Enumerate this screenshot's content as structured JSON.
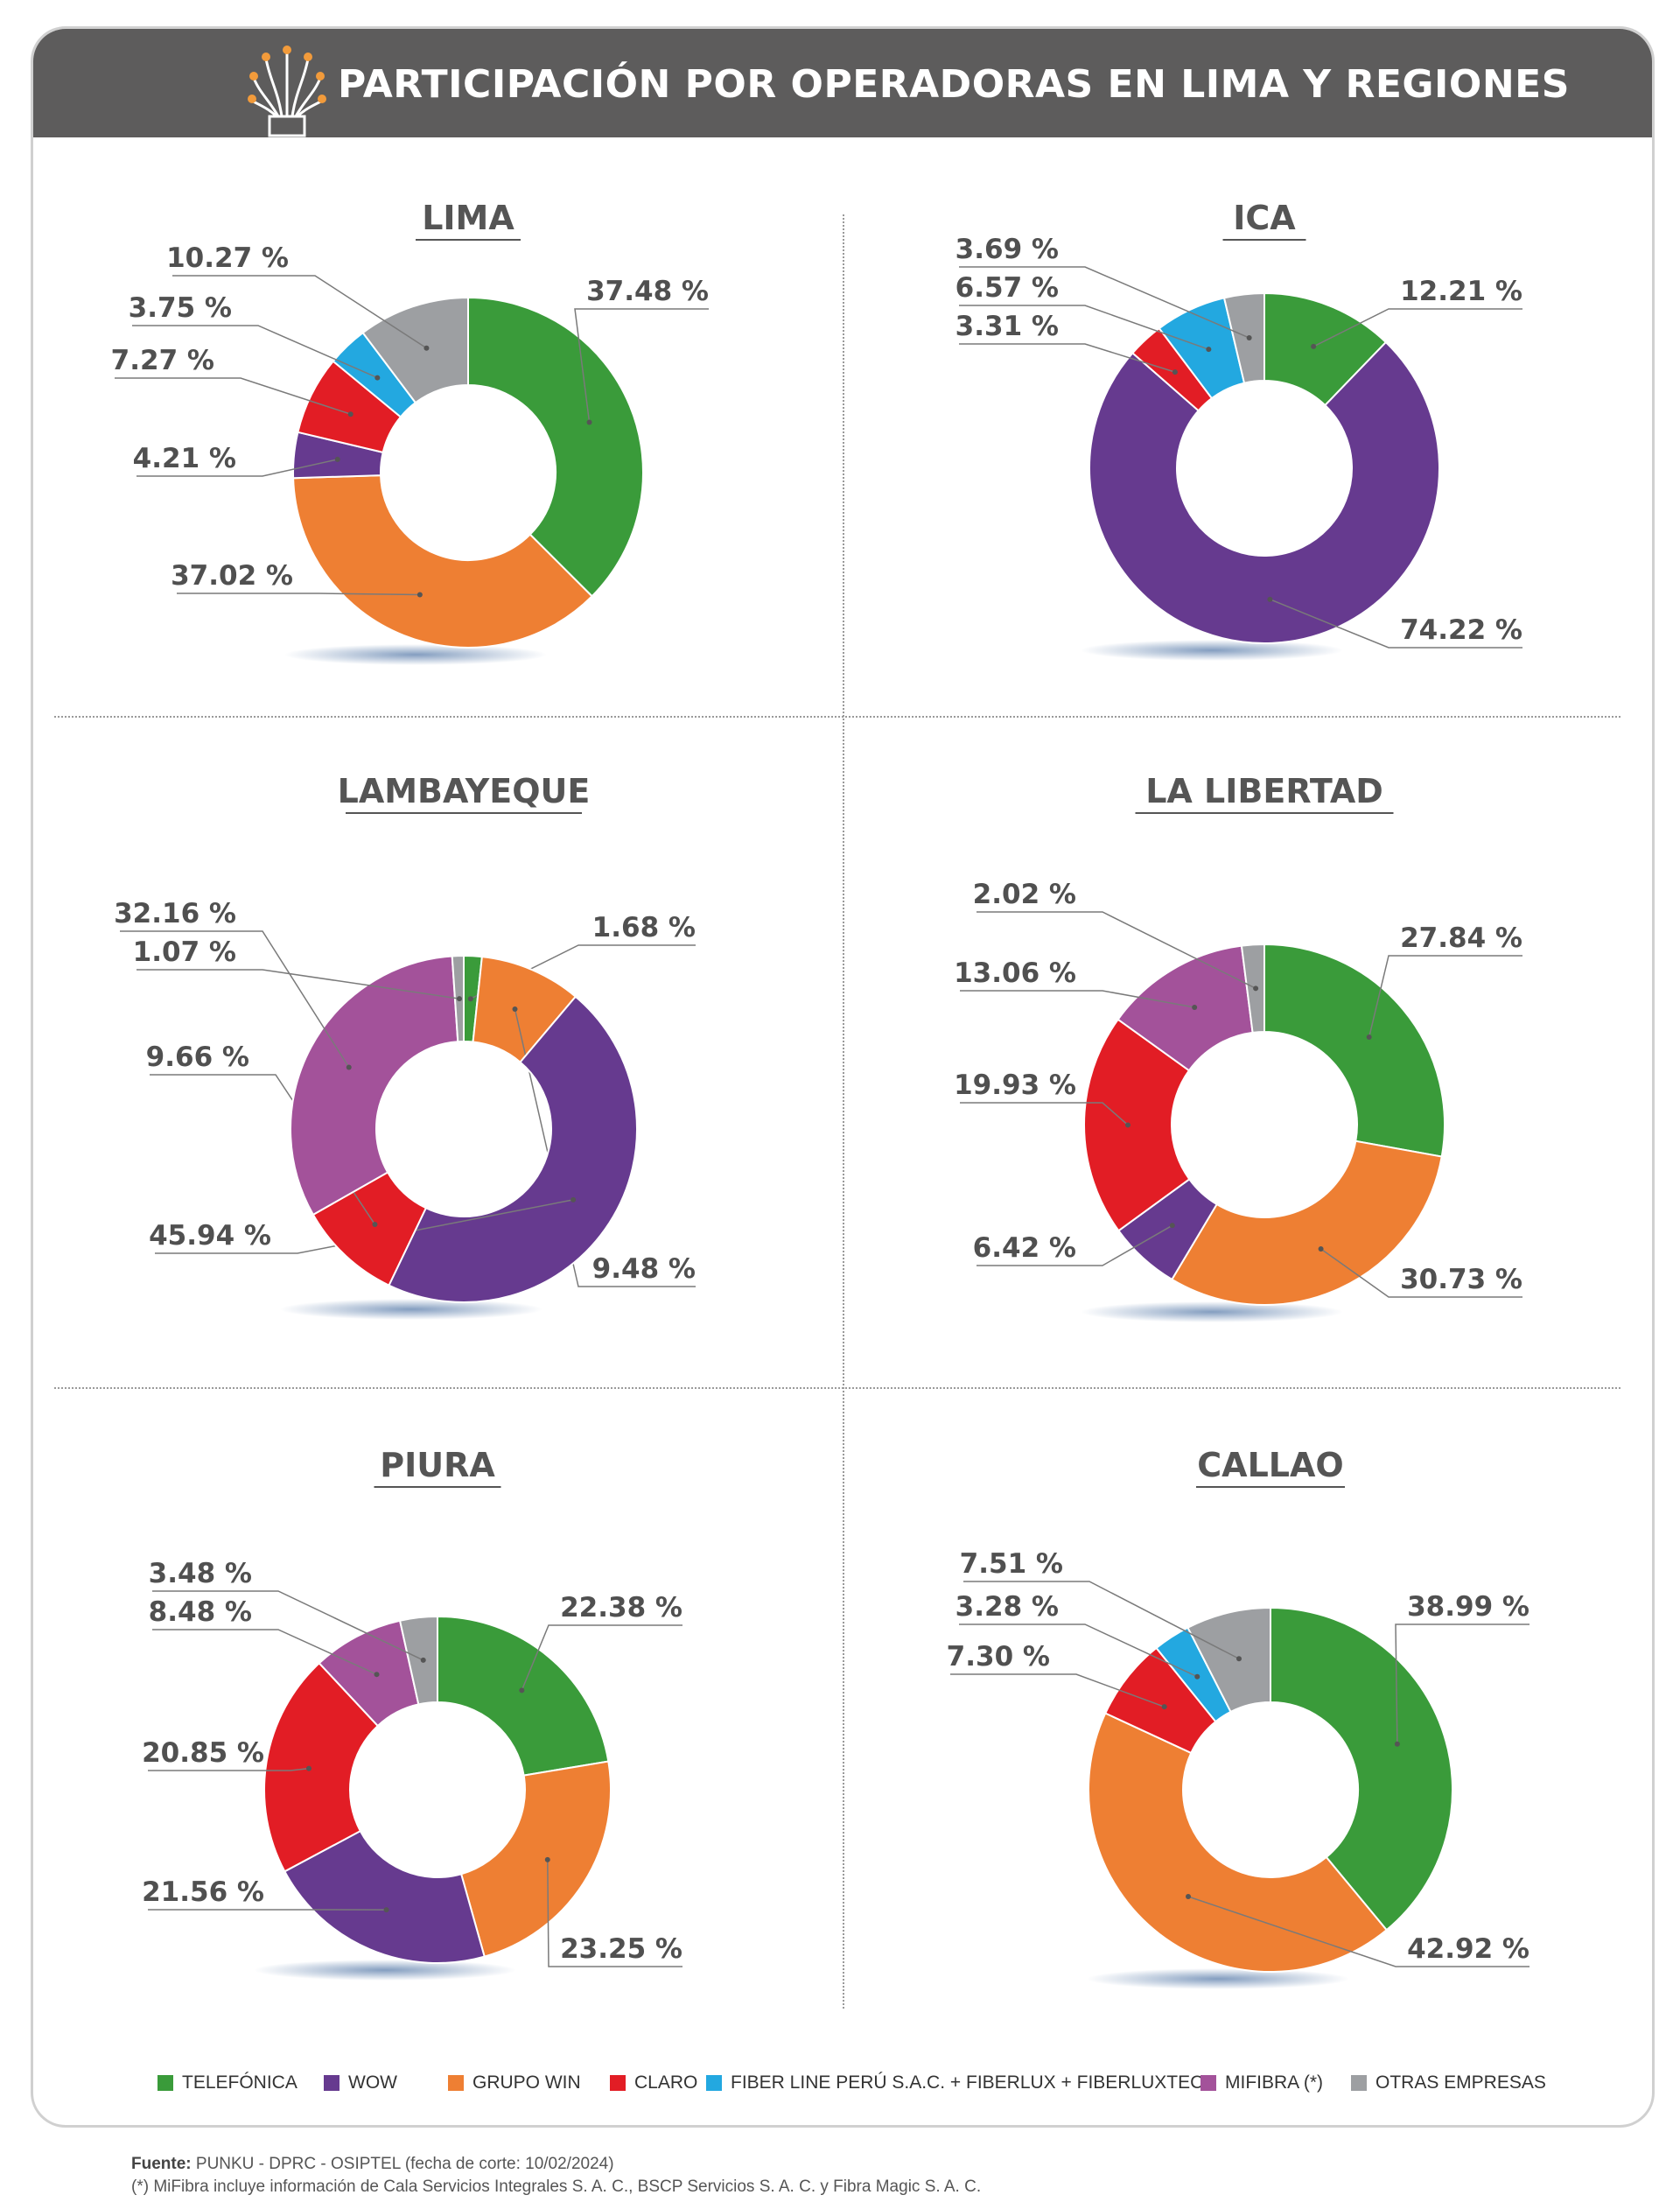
{
  "header": {
    "title": "PARTICIPACIÓN POR OPERADORAS EN LIMA Y REGIONES",
    "icon": "fiber-optic-icon"
  },
  "colors": {
    "TELEFÓNICA": "#3a9b3a",
    "WOW": "#663a8f",
    "GRUPO WIN": "#ee7f33",
    "CLARO": "#e21d25",
    "FIBER LINE PERÚ S.A.C. + FIBERLUX + FIBERLUXTECH": "#23a8e0",
    "MIFIBRA (*)": "#a3529a",
    "OTRAS EMPRESAS": "#9d9fa2"
  },
  "legend": [
    {
      "label": "TELEFÓNICA",
      "color": "#3a9b3a"
    },
    {
      "label": "WOW",
      "color": "#663a8f"
    },
    {
      "label": "GRUPO WIN",
      "color": "#ee7f33"
    },
    {
      "label": "CLARO",
      "color": "#e21d25"
    },
    {
      "label": "FIBER LINE PERÚ S.A.C. + FIBERLUX + FIBERLUXTECH",
      "color": "#23a8e0"
    },
    {
      "label": "MIFIBRA (*)",
      "color": "#a3529a"
    },
    {
      "label": "OTRAS EMPRESAS",
      "color": "#9d9fa2"
    }
  ],
  "chart_data": [
    {
      "type": "pie",
      "title": "LIMA",
      "series": [
        {
          "name": "TELEFÓNICA",
          "value": 37.48,
          "label": "37.48 %"
        },
        {
          "name": "GRUPO WIN",
          "value": 37.02,
          "label": "37.02 %"
        },
        {
          "name": "WOW",
          "value": 4.21,
          "label": "4.21 %"
        },
        {
          "name": "CLARO",
          "value": 7.27,
          "label": "7.27 %"
        },
        {
          "name": "FIBER LINE PERÚ S.A.C. + FIBERLUX + FIBERLUXTECH",
          "value": 3.75,
          "label": "3.75 %"
        },
        {
          "name": "OTRAS EMPRESAS",
          "value": 10.27,
          "label": "10.27 %"
        }
      ]
    },
    {
      "type": "pie",
      "title": "ICA",
      "series": [
        {
          "name": "TELEFÓNICA",
          "value": 12.21,
          "label": "12.21 %"
        },
        {
          "name": "WOW",
          "value": 74.22,
          "label": "74.22 %"
        },
        {
          "name": "CLARO",
          "value": 3.31,
          "label": "3.31 %"
        },
        {
          "name": "FIBER LINE PERÚ S.A.C. + FIBERLUX + FIBERLUXTECH",
          "value": 6.57,
          "label": "6.57 %"
        },
        {
          "name": "OTRAS EMPRESAS",
          "value": 3.69,
          "label": "3.69 %"
        }
      ]
    },
    {
      "type": "pie",
      "title": "LAMBAYEQUE",
      "series": [
        {
          "name": "TELEFÓNICA",
          "value": 1.68,
          "label": "1.68 %"
        },
        {
          "name": "GRUPO WIN",
          "value": 9.48,
          "label": "9.48 %"
        },
        {
          "name": "WOW",
          "value": 45.94,
          "label": "45.94 %"
        },
        {
          "name": "CLARO",
          "value": 9.66,
          "label": "9.66 %"
        },
        {
          "name": "MIFIBRA (*)",
          "value": 32.16,
          "label": "32.16 %"
        },
        {
          "name": "OTRAS EMPRESAS",
          "value": 1.07,
          "label": "1.07 %"
        }
      ]
    },
    {
      "type": "pie",
      "title": "LA LIBERTAD",
      "series": [
        {
          "name": "TELEFÓNICA",
          "value": 27.84,
          "label": "27.84 %"
        },
        {
          "name": "GRUPO WIN",
          "value": 30.73,
          "label": "30.73 %"
        },
        {
          "name": "WOW",
          "value": 6.42,
          "label": "6.42 %"
        },
        {
          "name": "CLARO",
          "value": 19.93,
          "label": "19.93 %"
        },
        {
          "name": "MIFIBRA (*)",
          "value": 13.06,
          "label": "13.06 %"
        },
        {
          "name": "OTRAS EMPRESAS",
          "value": 2.02,
          "label": "2.02 %"
        }
      ]
    },
    {
      "type": "pie",
      "title": "PIURA",
      "series": [
        {
          "name": "TELEFÓNICA",
          "value": 22.38,
          "label": "22.38 %"
        },
        {
          "name": "GRUPO WIN",
          "value": 23.25,
          "label": "23.25 %"
        },
        {
          "name": "WOW",
          "value": 21.56,
          "label": "21.56 %"
        },
        {
          "name": "CLARO",
          "value": 20.85,
          "label": "20.85 %"
        },
        {
          "name": "MIFIBRA (*)",
          "value": 8.48,
          "label": "8.48 %"
        },
        {
          "name": "OTRAS EMPRESAS",
          "value": 3.48,
          "label": "3.48 %"
        }
      ]
    },
    {
      "type": "pie",
      "title": "CALLAO",
      "series": [
        {
          "name": "TELEFÓNICA",
          "value": 38.99,
          "label": "38.99 %"
        },
        {
          "name": "GRUPO WIN",
          "value": 42.92,
          "label": "42.92 %"
        },
        {
          "name": "CLARO",
          "value": 7.3,
          "label": "7.30 %"
        },
        {
          "name": "FIBER LINE PERÚ S.A.C. + FIBERLUX + FIBERLUXTECH",
          "value": 3.28,
          "label": "3.28 %"
        },
        {
          "name": "OTRAS EMPRESAS",
          "value": 7.51,
          "label": "7.51 %"
        }
      ]
    }
  ],
  "footer": {
    "source_label": "Fuente:",
    "source_text": "PUNKU - DPRC - OSIPTEL (fecha de corte: 10/02/2024)",
    "note": "(*) MiFibra incluye información de Cala Servicios Integrales S. A. C., BSCP Servicios S. A. C. y Fibra Magic S. A. C."
  }
}
